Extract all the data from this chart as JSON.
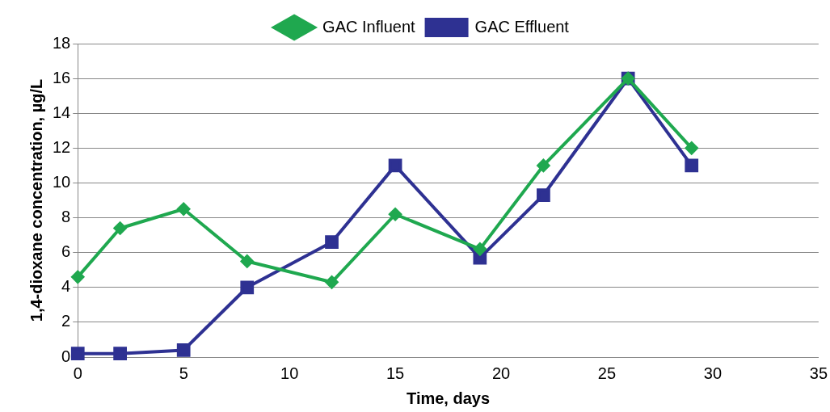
{
  "chart_data": {
    "type": "line",
    "xlabel": "Time, days",
    "ylabel": "1,4-dioxane concentration, µg/L",
    "xlim": [
      0,
      35
    ],
    "xticks": [
      0,
      5,
      10,
      15,
      20,
      25,
      30,
      35
    ],
    "ylim": [
      0,
      18
    ],
    "yticks": [
      0,
      2,
      4,
      6,
      8,
      10,
      12,
      14,
      16,
      18
    ],
    "grid": "y",
    "legend": "top",
    "series": [
      {
        "name": "GAC Influent",
        "color": "#1fa84f",
        "marker": "diamond",
        "x": [
          0,
          2,
          5,
          8,
          12,
          15,
          19,
          22,
          26,
          29
        ],
        "values": [
          4.6,
          7.4,
          8.5,
          5.5,
          4.3,
          8.2,
          6.2,
          11,
          16,
          12
        ]
      },
      {
        "name": "GAC Effluent",
        "color": "#2e3192",
        "marker": "square",
        "x": [
          0,
          2,
          5,
          8,
          12,
          15,
          19,
          22,
          26,
          29
        ],
        "values": [
          0.2,
          0.2,
          0.4,
          4.0,
          6.6,
          11,
          5.7,
          9.3,
          16,
          11
        ]
      }
    ]
  }
}
